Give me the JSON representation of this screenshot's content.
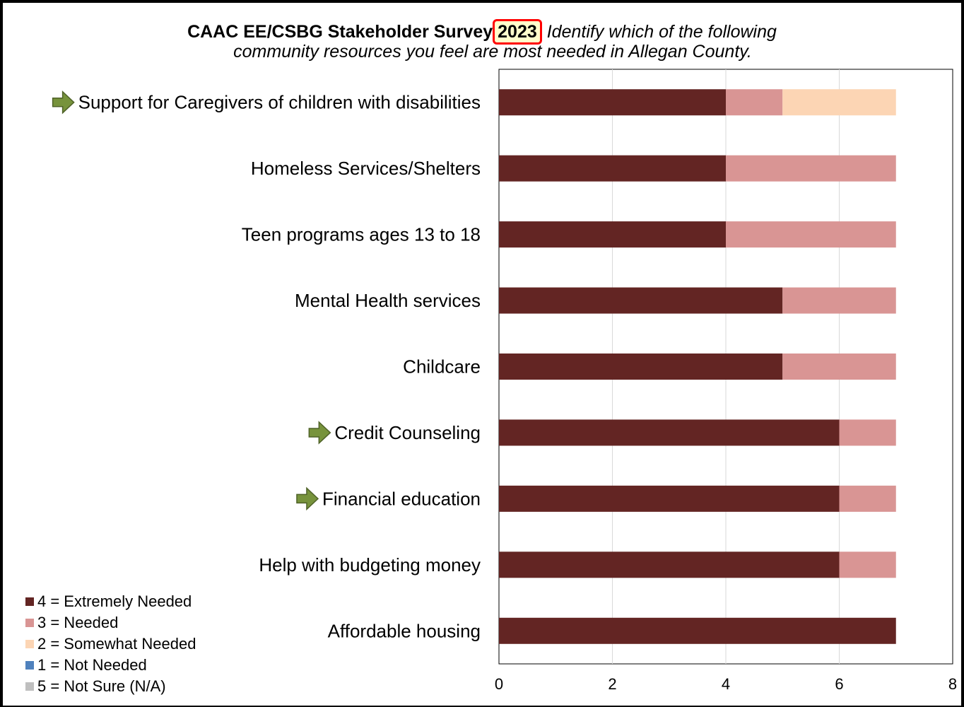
{
  "title": {
    "line1_bold": "CAAC EE/CSBG Stakeholder Survey",
    "year": "2023",
    "line1_italic": "Identify which of the following",
    "line2_italic": "community resources you feel are most needed in Allegan County."
  },
  "chart_data": {
    "type": "bar",
    "orientation": "horizontal",
    "stacked": true,
    "categories": [
      "Support for Caregivers of children with disabilities",
      "Homeless Services/Shelters",
      "Teen programs ages 13 to 18",
      "Mental Health services",
      "Childcare",
      "Credit Counseling",
      "Financial education",
      "Help with budgeting money",
      "Affordable housing"
    ],
    "arrow_marked": [
      true,
      false,
      false,
      false,
      false,
      true,
      true,
      false,
      false
    ],
    "series": [
      {
        "name": "4 = Extremely Needed",
        "color": "#632523",
        "values": [
          4,
          4,
          4,
          5,
          5,
          6,
          6,
          6,
          7
        ]
      },
      {
        "name": "3 = Needed",
        "color": "#d99594",
        "values": [
          1,
          3,
          3,
          2,
          2,
          1,
          1,
          1,
          0
        ]
      },
      {
        "name": "2 = Somewhat Needed",
        "color": "#fcd5b4",
        "values": [
          2,
          0,
          0,
          0,
          0,
          0,
          0,
          0,
          0
        ]
      },
      {
        "name": "1 = Not Needed",
        "color": "#4f81bd",
        "values": [
          0,
          0,
          0,
          0,
          0,
          0,
          0,
          0,
          0
        ]
      },
      {
        "name": "5 = Not Sure (N/A)",
        "color": "#bfbfbf",
        "values": [
          0,
          0,
          0,
          0,
          0,
          0,
          0,
          0,
          0
        ]
      }
    ],
    "xlim": [
      0,
      8
    ],
    "xticks": [
      0,
      2,
      4,
      6,
      8
    ],
    "grid": true,
    "legend_position": "bottom-left"
  },
  "colors": {
    "arrow": "#77933c",
    "arrow_stroke": "#4f6228",
    "year_highlight": "#ffffcc",
    "year_border": "#ff0000"
  }
}
